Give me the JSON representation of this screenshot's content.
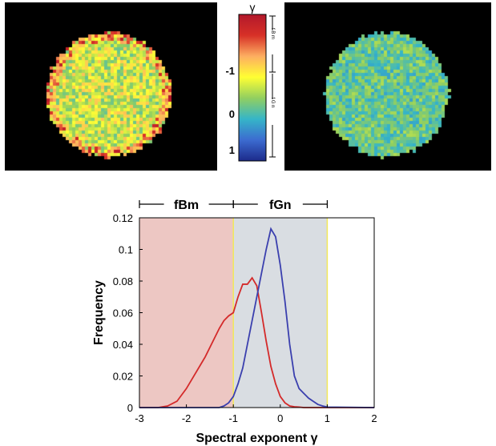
{
  "colorbar": {
    "symbol": "γ",
    "ticks": [
      "-1",
      "0",
      "1"
    ],
    "ranges": [
      {
        "label": "f B m"
      },
      {
        "label": "f G n"
      }
    ],
    "colors": [
      "#b2182b",
      "#d73027",
      "#fdae61",
      "#ffff33",
      "#91cf60",
      "#35b5c8",
      "#3c6bd0",
      "#1c2a8a"
    ]
  },
  "chart_data": {
    "type": "line",
    "xlabel": "Spectral exponent γ",
    "ylabel": "Frequency",
    "xlim": [
      -3,
      2
    ],
    "ylim": [
      0,
      0.12
    ],
    "xticks": [
      "-3",
      "-2",
      "-1",
      "0",
      "1",
      "2"
    ],
    "yticks": [
      "0",
      "0.02",
      "0.04",
      "0.06",
      "0.08",
      "0.1",
      "0.12"
    ],
    "regions": [
      {
        "label": "fBm",
        "x0": -3,
        "x1": -1,
        "color": "#edc7c3"
      },
      {
        "label": "fGn",
        "x0": -1,
        "x1": 1,
        "color": "#d9dde2"
      }
    ],
    "boundary_color": "#f2e85a",
    "series": [
      {
        "color": "#d42a2a",
        "x": [
          -3,
          -2.6,
          -2.4,
          -2.2,
          -2.0,
          -1.8,
          -1.6,
          -1.4,
          -1.3,
          -1.2,
          -1.1,
          -1.0,
          -0.9,
          -0.8,
          -0.7,
          -0.6,
          -0.5,
          -0.4,
          -0.3,
          -0.2,
          -0.1,
          0.0,
          0.1,
          0.2,
          0.3,
          0.4,
          0.5,
          1.0,
          2.0
        ],
        "values": [
          0,
          0,
          0.001,
          0.004,
          0.012,
          0.022,
          0.032,
          0.044,
          0.05,
          0.055,
          0.058,
          0.06,
          0.07,
          0.078,
          0.078,
          0.082,
          0.077,
          0.06,
          0.042,
          0.026,
          0.015,
          0.007,
          0.003,
          0.001,
          0.0005,
          0.0003,
          0,
          0,
          0
        ]
      },
      {
        "color": "#3a3fae",
        "x": [
          -3,
          -1.3,
          -1.2,
          -1.1,
          -1.0,
          -0.9,
          -0.8,
          -0.7,
          -0.6,
          -0.5,
          -0.4,
          -0.3,
          -0.2,
          -0.1,
          0.0,
          0.1,
          0.2,
          0.3,
          0.4,
          0.5,
          0.6,
          0.7,
          0.8,
          0.9,
          1.0,
          2.0
        ],
        "values": [
          0,
          0,
          0.001,
          0.003,
          0.007,
          0.015,
          0.025,
          0.04,
          0.055,
          0.07,
          0.085,
          0.1,
          0.113,
          0.108,
          0.09,
          0.067,
          0.04,
          0.02,
          0.012,
          0.009,
          0.006,
          0.004,
          0.002,
          0.001,
          0.0003,
          0
        ]
      }
    ]
  }
}
